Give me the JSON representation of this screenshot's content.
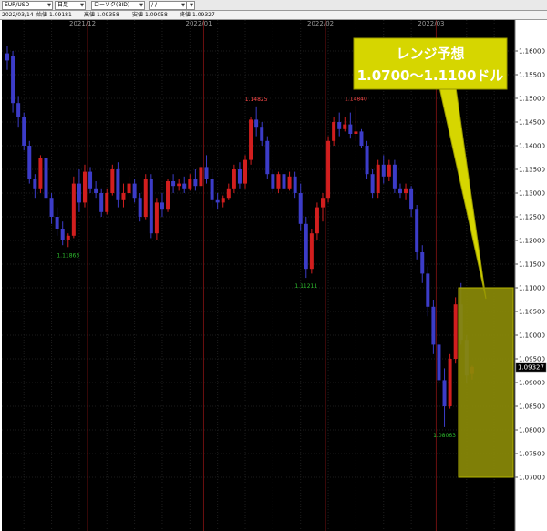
{
  "toolbar": {
    "symbol": "EUR/USD",
    "timeframe": "日足",
    "chart_kind": "ローソク(BID)",
    "date_placeholder": "/ /"
  },
  "ohlc": {
    "date": "2022/03/14",
    "open_label": "始値",
    "open_value": "1.09181",
    "high_label": "高値",
    "high_value": "1.09358",
    "low_label": "安値",
    "low_value": "1.09058",
    "close_label": "終値",
    "close_value": "1.09327"
  },
  "callout": {
    "line1": "レンジ予想",
    "line2": "1.0700～1.1100ドル"
  },
  "colors": {
    "background": "#000000",
    "bull": "#d21e1e",
    "bear": "#3c3cc8",
    "range_box": "#8a8a08",
    "high_label": "#ff4a4a",
    "low_label": "#2fbf2f"
  },
  "chart_data": {
    "type": "candlestick",
    "symbol": "EUR/USD",
    "ylim": [
      1.065,
      1.165
    ],
    "y_ticks": [
      "1.16000",
      "1.15500",
      "1.15000",
      "1.14500",
      "1.14000",
      "1.13500",
      "1.13000",
      "1.12500",
      "1.12000",
      "1.11500",
      "1.11000",
      "1.10500",
      "1.10000",
      "1.09500",
      "1.09000",
      "1.08500",
      "1.08000",
      "1.07500",
      "1.07000"
    ],
    "month_labels": [
      {
        "label": "2021/12",
        "index": 15
      },
      {
        "label": "2022/01",
        "index": 36
      },
      {
        "label": "2022/02",
        "index": 58
      },
      {
        "label": "2022/03",
        "index": 78
      }
    ],
    "current_price": "1.09327",
    "range_forecast": [
      1.07,
      1.11
    ],
    "annotations": [
      {
        "text": "1.11863",
        "index": 11,
        "type": "low",
        "price": 1.11863
      },
      {
        "text": "1.14825",
        "index": 45,
        "type": "high",
        "price": 1.14825
      },
      {
        "text": "1.11211",
        "index": 54,
        "type": "low",
        "price": 1.11211
      },
      {
        "text": "1.14840",
        "index": 63,
        "type": "high",
        "price": 1.1484
      },
      {
        "text": "1.08063",
        "index": 79,
        "type": "low",
        "price": 1.08063
      }
    ],
    "candles": [
      {
        "o": 1.1595,
        "h": 1.161,
        "l": 1.156,
        "c": 1.158
      },
      {
        "o": 1.159,
        "h": 1.16,
        "l": 1.147,
        "c": 1.149
      },
      {
        "o": 1.149,
        "h": 1.1505,
        "l": 1.144,
        "c": 1.146
      },
      {
        "o": 1.146,
        "h": 1.147,
        "l": 1.139,
        "c": 1.14
      },
      {
        "o": 1.14,
        "h": 1.141,
        "l": 1.132,
        "c": 1.133
      },
      {
        "o": 1.133,
        "h": 1.134,
        "l": 1.129,
        "c": 1.131
      },
      {
        "o": 1.131,
        "h": 1.138,
        "l": 1.13,
        "c": 1.1375
      },
      {
        "o": 1.1375,
        "h": 1.1385,
        "l": 1.127,
        "c": 1.129
      },
      {
        "o": 1.129,
        "h": 1.13,
        "l": 1.1235,
        "c": 1.125
      },
      {
        "o": 1.125,
        "h": 1.127,
        "l": 1.121,
        "c": 1.1225
      },
      {
        "o": 1.1225,
        "h": 1.124,
        "l": 1.119,
        "c": 1.12
      },
      {
        "o": 1.12,
        "h": 1.1215,
        "l": 1.1186,
        "c": 1.121
      },
      {
        "o": 1.121,
        "h": 1.1335,
        "l": 1.1205,
        "c": 1.132
      },
      {
        "o": 1.132,
        "h": 1.135,
        "l": 1.126,
        "c": 1.128
      },
      {
        "o": 1.128,
        "h": 1.136,
        "l": 1.127,
        "c": 1.1345
      },
      {
        "o": 1.1345,
        "h": 1.1355,
        "l": 1.13,
        "c": 1.131
      },
      {
        "o": 1.131,
        "h": 1.1325,
        "l": 1.129,
        "c": 1.13
      },
      {
        "o": 1.13,
        "h": 1.131,
        "l": 1.125,
        "c": 1.126
      },
      {
        "o": 1.126,
        "h": 1.131,
        "l": 1.1255,
        "c": 1.13
      },
      {
        "o": 1.13,
        "h": 1.136,
        "l": 1.1295,
        "c": 1.135
      },
      {
        "o": 1.135,
        "h": 1.1365,
        "l": 1.127,
        "c": 1.1285
      },
      {
        "o": 1.1285,
        "h": 1.132,
        "l": 1.127,
        "c": 1.13
      },
      {
        "o": 1.13,
        "h": 1.1335,
        "l": 1.128,
        "c": 1.132
      },
      {
        "o": 1.132,
        "h": 1.133,
        "l": 1.128,
        "c": 1.129
      },
      {
        "o": 1.129,
        "h": 1.13,
        "l": 1.124,
        "c": 1.125
      },
      {
        "o": 1.125,
        "h": 1.134,
        "l": 1.1245,
        "c": 1.133
      },
      {
        "o": 1.133,
        "h": 1.134,
        "l": 1.1205,
        "c": 1.1215
      },
      {
        "o": 1.1215,
        "h": 1.129,
        "l": 1.12,
        "c": 1.128
      },
      {
        "o": 1.128,
        "h": 1.13,
        "l": 1.125,
        "c": 1.1265
      },
      {
        "o": 1.1265,
        "h": 1.133,
        "l": 1.126,
        "c": 1.1325
      },
      {
        "o": 1.1325,
        "h": 1.134,
        "l": 1.13,
        "c": 1.1315
      },
      {
        "o": 1.1315,
        "h": 1.133,
        "l": 1.1305,
        "c": 1.132
      },
      {
        "o": 1.132,
        "h": 1.1335,
        "l": 1.13,
        "c": 1.131
      },
      {
        "o": 1.131,
        "h": 1.134,
        "l": 1.1305,
        "c": 1.133
      },
      {
        "o": 1.133,
        "h": 1.135,
        "l": 1.1305,
        "c": 1.1315
      },
      {
        "o": 1.1315,
        "h": 1.136,
        "l": 1.131,
        "c": 1.1355
      },
      {
        "o": 1.1355,
        "h": 1.138,
        "l": 1.132,
        "c": 1.133
      },
      {
        "o": 1.133,
        "h": 1.1345,
        "l": 1.127,
        "c": 1.1285
      },
      {
        "o": 1.1285,
        "h": 1.13,
        "l": 1.1265,
        "c": 1.128
      },
      {
        "o": 1.128,
        "h": 1.1295,
        "l": 1.127,
        "c": 1.129
      },
      {
        "o": 1.129,
        "h": 1.132,
        "l": 1.1285,
        "c": 1.131
      },
      {
        "o": 1.131,
        "h": 1.136,
        "l": 1.13,
        "c": 1.135
      },
      {
        "o": 1.135,
        "h": 1.1365,
        "l": 1.131,
        "c": 1.132
      },
      {
        "o": 1.132,
        "h": 1.138,
        "l": 1.131,
        "c": 1.137
      },
      {
        "o": 1.137,
        "h": 1.146,
        "l": 1.136,
        "c": 1.1455
      },
      {
        "o": 1.1455,
        "h": 1.1483,
        "l": 1.142,
        "c": 1.144
      },
      {
        "o": 1.144,
        "h": 1.145,
        "l": 1.14,
        "c": 1.141
      },
      {
        "o": 1.141,
        "h": 1.142,
        "l": 1.133,
        "c": 1.134
      },
      {
        "o": 1.134,
        "h": 1.135,
        "l": 1.13,
        "c": 1.131
      },
      {
        "o": 1.131,
        "h": 1.1345,
        "l": 1.13,
        "c": 1.134
      },
      {
        "o": 1.134,
        "h": 1.135,
        "l": 1.13,
        "c": 1.131
      },
      {
        "o": 1.131,
        "h": 1.1345,
        "l": 1.1305,
        "c": 1.1335
      },
      {
        "o": 1.1335,
        "h": 1.1345,
        "l": 1.129,
        "c": 1.13
      },
      {
        "o": 1.13,
        "h": 1.132,
        "l": 1.122,
        "c": 1.1235
      },
      {
        "o": 1.1235,
        "h": 1.125,
        "l": 1.1121,
        "c": 1.114
      },
      {
        "o": 1.114,
        "h": 1.1225,
        "l": 1.113,
        "c": 1.1215
      },
      {
        "o": 1.1215,
        "h": 1.128,
        "l": 1.12,
        "c": 1.127
      },
      {
        "o": 1.127,
        "h": 1.13,
        "l": 1.124,
        "c": 1.129
      },
      {
        "o": 1.129,
        "h": 1.142,
        "l": 1.128,
        "c": 1.141
      },
      {
        "o": 1.141,
        "h": 1.146,
        "l": 1.14,
        "c": 1.145
      },
      {
        "o": 1.145,
        "h": 1.147,
        "l": 1.142,
        "c": 1.1435
      },
      {
        "o": 1.1435,
        "h": 1.146,
        "l": 1.143,
        "c": 1.1445
      },
      {
        "o": 1.1445,
        "h": 1.147,
        "l": 1.1415,
        "c": 1.1425
      },
      {
        "o": 1.1425,
        "h": 1.1484,
        "l": 1.141,
        "c": 1.143
      },
      {
        "o": 1.143,
        "h": 1.1435,
        "l": 1.1395,
        "c": 1.14
      },
      {
        "o": 1.14,
        "h": 1.141,
        "l": 1.133,
        "c": 1.134
      },
      {
        "o": 1.134,
        "h": 1.135,
        "l": 1.129,
        "c": 1.13
      },
      {
        "o": 1.13,
        "h": 1.137,
        "l": 1.129,
        "c": 1.136
      },
      {
        "o": 1.136,
        "h": 1.138,
        "l": 1.132,
        "c": 1.1335
      },
      {
        "o": 1.1335,
        "h": 1.137,
        "l": 1.1325,
        "c": 1.136
      },
      {
        "o": 1.136,
        "h": 1.137,
        "l": 1.13,
        "c": 1.131
      },
      {
        "o": 1.131,
        "h": 1.132,
        "l": 1.129,
        "c": 1.13
      },
      {
        "o": 1.13,
        "h": 1.132,
        "l": 1.1285,
        "c": 1.131
      },
      {
        "o": 1.131,
        "h": 1.1315,
        "l": 1.125,
        "c": 1.1265
      },
      {
        "o": 1.1265,
        "h": 1.1275,
        "l": 1.116,
        "c": 1.1175
      },
      {
        "o": 1.1175,
        "h": 1.119,
        "l": 1.111,
        "c": 1.113
      },
      {
        "o": 1.113,
        "h": 1.1145,
        "l": 1.104,
        "c": 1.106
      },
      {
        "o": 1.106,
        "h": 1.1075,
        "l": 1.096,
        "c": 1.098
      },
      {
        "o": 1.098,
        "h": 1.099,
        "l": 1.089,
        "c": 1.0905
      },
      {
        "o": 1.0905,
        "h": 1.093,
        "l": 1.0806,
        "c": 1.085
      },
      {
        "o": 1.085,
        "h": 1.096,
        "l": 1.0845,
        "c": 1.095
      },
      {
        "o": 1.095,
        "h": 1.108,
        "l": 1.094,
        "c": 1.1065
      },
      {
        "o": 1.1065,
        "h": 1.111,
        "l": 1.098,
        "c": 1.099
      },
      {
        "o": 1.099,
        "h": 1.1,
        "l": 1.09,
        "c": 1.0915
      },
      {
        "o": 1.0918,
        "h": 1.0936,
        "l": 1.0906,
        "c": 1.0933
      }
    ]
  }
}
